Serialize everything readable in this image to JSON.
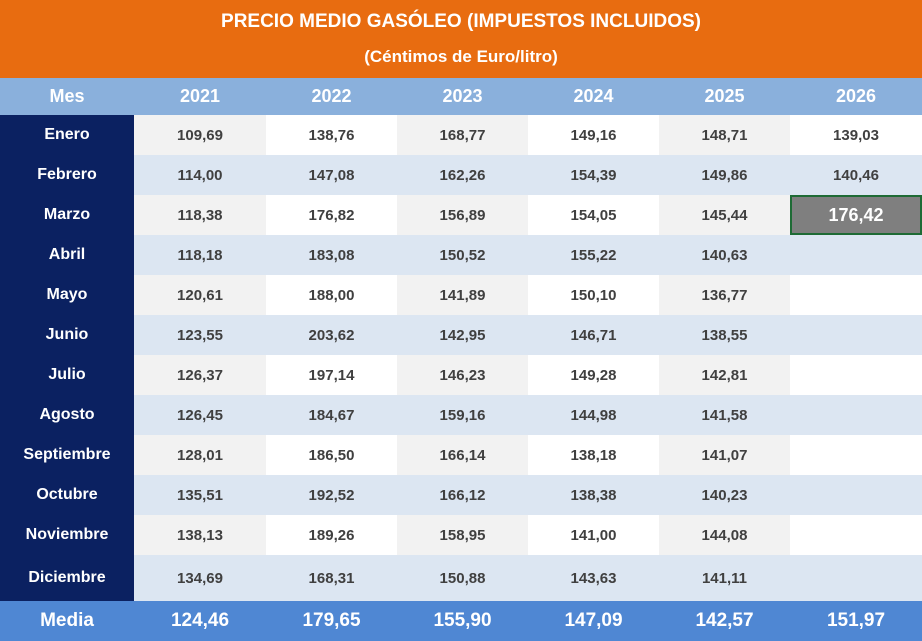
{
  "header": {
    "title": "PRECIO MEDIO GASÓLEO (IMPUESTOS INCLUIDOS)",
    "subtitle": "(Céntimos de Euro/litro)"
  },
  "columns": [
    "Mes",
    "2021",
    "2022",
    "2023",
    "2024",
    "2025",
    "2026"
  ],
  "rows": [
    {
      "month": "Enero",
      "values": [
        "109,69",
        "138,76",
        "168,77",
        "149,16",
        "148,71",
        "139,03"
      ]
    },
    {
      "month": "Febrero",
      "values": [
        "114,00",
        "147,08",
        "162,26",
        "154,39",
        "149,86",
        "140,46"
      ]
    },
    {
      "month": "Marzo",
      "values": [
        "118,38",
        "176,82",
        "156,89",
        "154,05",
        "145,44",
        "176,42"
      ]
    },
    {
      "month": "Abril",
      "values": [
        "118,18",
        "183,08",
        "150,52",
        "155,22",
        "140,63",
        ""
      ]
    },
    {
      "month": "Mayo",
      "values": [
        "120,61",
        "188,00",
        "141,89",
        "150,10",
        "136,77",
        ""
      ]
    },
    {
      "month": "Junio",
      "values": [
        "123,55",
        "203,62",
        "142,95",
        "146,71",
        "138,55",
        ""
      ]
    },
    {
      "month": "Julio",
      "values": [
        "126,37",
        "197,14",
        "146,23",
        "149,28",
        "142,81",
        ""
      ]
    },
    {
      "month": "Agosto",
      "values": [
        "126,45",
        "184,67",
        "159,16",
        "144,98",
        "141,58",
        ""
      ]
    },
    {
      "month": "Septiembre",
      "values": [
        "128,01",
        "186,50",
        "166,14",
        "138,18",
        "141,07",
        ""
      ]
    },
    {
      "month": "Octubre",
      "values": [
        "135,51",
        "192,52",
        "166,12",
        "138,38",
        "140,23",
        ""
      ]
    },
    {
      "month": "Noviembre",
      "values": [
        "138,13",
        "189,26",
        "158,95",
        "141,00",
        "144,08",
        ""
      ]
    },
    {
      "month": "Diciembre",
      "values": [
        "134,69",
        "168,31",
        "150,88",
        "143,63",
        "141,11",
        ""
      ]
    }
  ],
  "footer": {
    "label": "Media",
    "values": [
      "124,46",
      "179,65",
      "155,90",
      "147,09",
      "142,57",
      "151,97"
    ]
  },
  "selected_cell": {
    "row": "Marzo",
    "column": "2026"
  },
  "colors": {
    "header": "#e86c10",
    "column_header": "#8ab0dc",
    "month_column": "#0b2161",
    "row_alt": "#dce6f2",
    "footer": "#4f87d3",
    "selected": "#7f7f7f"
  }
}
